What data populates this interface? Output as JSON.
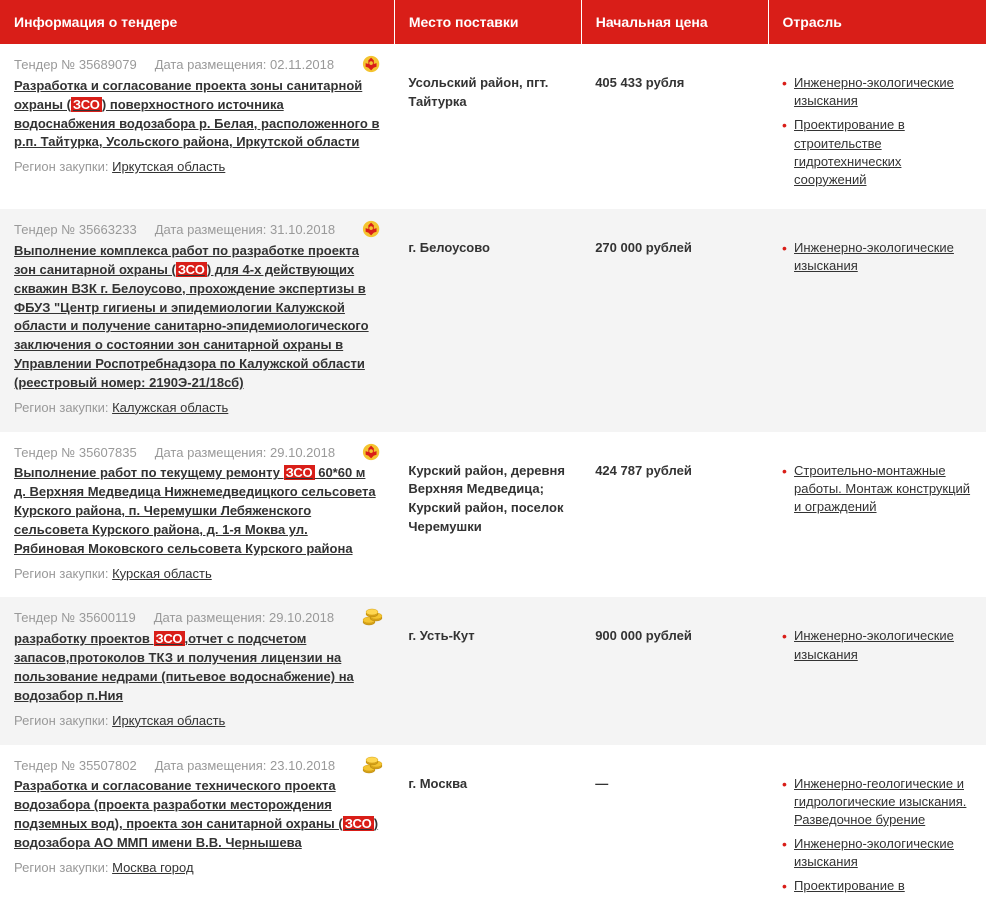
{
  "colors": {
    "header_bg": "#d91e18",
    "header_text": "#ffffff",
    "row_alt_bg": "#f4f4f4",
    "bullet": "#d91e18",
    "highlight_bg": "#d91e18",
    "highlight_text": "#ffffff",
    "meta_text": "#999999",
    "body_text": "#333333"
  },
  "headers": {
    "info": "Информация о тендере",
    "place": "Место поставки",
    "price": "Начальная цена",
    "industry": "Отрасль"
  },
  "labels": {
    "tender_prefix": "Тендер № ",
    "date_prefix": "Дата размещения: ",
    "region_prefix": "Регион закупки: "
  },
  "highlight_term": "ЗСО",
  "rows": [
    {
      "tender_no": "35689079",
      "date": "02.11.2018",
      "icon": "emblem",
      "title_before": "Разработка и согласование проекта зоны санитарной охраны (",
      "title_highlight": "ЗСО",
      "title_after": ") поверхностного источника водоснабжения водозабора р. Белая, расположенного в р.п. Тайтурка, Усольского района, Иркутской области",
      "region": "Иркутская область",
      "place": "Усольский район, пгт. Тайтурка",
      "price": "405 433 рубля",
      "industries": [
        "Инженерно-экологические изыскания",
        "Проектирование в строительстве гидротехнических сооружений"
      ]
    },
    {
      "tender_no": "35663233",
      "date": "31.10.2018",
      "icon": "emblem",
      "title_before": "Выполнение комплекса работ по разработке проекта зон санитарной охраны (",
      "title_highlight": "ЗСО",
      "title_after": ") для 4-х действующих скважин ВЗК г. Белоусово, прохождение экспертизы в ФБУЗ \"Центр гигиены и эпидемиологии Калужской области и получение санитарно-эпидемиологического заключения о состоянии зон санитарной охраны в Управлении Роспотребнадзора по Калужской области (реестровый номер: 2190Э-21/18сб)",
      "region": "Калужская область",
      "place": "г. Белоусово",
      "price": "270 000 рублей",
      "industries": [
        "Инженерно-экологические изыскания"
      ]
    },
    {
      "tender_no": "35607835",
      "date": "29.10.2018",
      "icon": "emblem",
      "title_before": "Выполнение работ по текущему ремонту ",
      "title_highlight": "ЗСО",
      "title_after": " 60*60 м д. Верхняя Медведица Нижнемедведицкого сельсовета Курского района, п. Черемушки Лебяженского сельсовета Курского района, д. 1-я Моква ул. Рябиновая Моковского сельсовета Курского района",
      "region": "Курская область",
      "place": "Курский район, деревня Верхняя Медведица; Курский район, поселок Черемушки",
      "price": "424 787 рублей",
      "industries": [
        "Строительно-монтажные работы. Монтаж конструкций и ограждений"
      ]
    },
    {
      "tender_no": "35600119",
      "date": "29.10.2018",
      "icon": "coins",
      "title_before": "разработку проектов ",
      "title_highlight": "ЗСО",
      "title_after": ",отчет с подсчетом запасов,протоколов ТКЗ и получения лицензии на пользование недрами (питьевое водоснабжение) на водозабор п.Ния",
      "region": "Иркутская область",
      "place": "г. Усть-Кут",
      "price": "900 000 рублей",
      "industries": [
        "Инженерно-экологические изыскания"
      ]
    },
    {
      "tender_no": "35507802",
      "date": "23.10.2018",
      "icon": "coins",
      "title_before": "Разработка и согласование технического проекта водозабора (проекта разработки месторождения подземных вод), проекта зон санитарной охраны (",
      "title_highlight": "ЗСО",
      "title_after": ") водозабора АО ММП имени В.В. Чернышева",
      "region": "Москва город",
      "place": "г. Москва",
      "price": "—",
      "industries": [
        "Инженерно-геологические и гидрологические изыскания. Разведочное бурение",
        "Инженерно-экологические изыскания",
        "Проектирование в"
      ]
    }
  ]
}
